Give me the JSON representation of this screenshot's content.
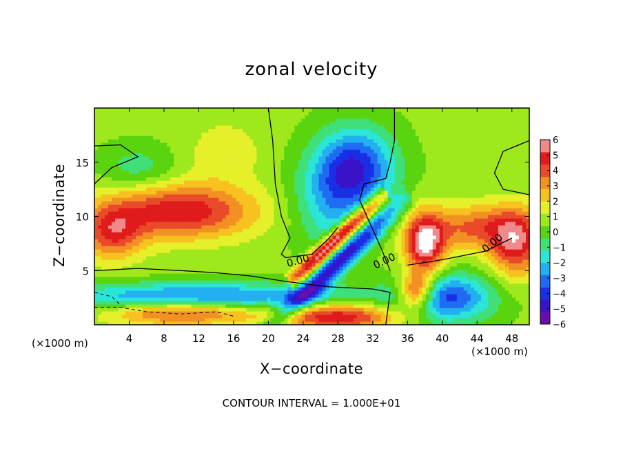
{
  "chart_data": {
    "type": "heatmap",
    "title": "zonal velocity",
    "xlabel": "X−coordinate",
    "ylabel": "Z−coordinate",
    "x_unit": "(×1000 m)",
    "y_unit": "(×1000 m)",
    "xlim": [
      0,
      50
    ],
    "ylim": [
      0,
      20
    ],
    "x_ticks": [
      "4",
      "8",
      "12",
      "16",
      "20",
      "24",
      "28",
      "32",
      "36",
      "40",
      "44",
      "48"
    ],
    "y_ticks": [
      "5",
      "10",
      "15"
    ],
    "colorbar": {
      "ticks": [
        "6",
        "5",
        "4",
        "3",
        "2",
        "1",
        "0",
        "−1",
        "−2",
        "−3",
        "−4",
        "−5",
        "−6"
      ],
      "range": [
        -6,
        6
      ],
      "colors": [
        "#6a0dad",
        "#3a12c8",
        "#1a2ee6",
        "#1f6cf2",
        "#22b0f0",
        "#2be6d8",
        "#3fe07a",
        "#5ad40f",
        "#9ee81c",
        "#e6f02a",
        "#f7c21f",
        "#f39023",
        "#e94a2a",
        "#e01b1b",
        "#f08a8a"
      ]
    },
    "field_features": [
      {
        "kind": "jet",
        "sign": "negative",
        "x": 30,
        "z": 14.5,
        "amplitude": -4.8
      },
      {
        "kind": "jet",
        "sign": "positive",
        "x": 10,
        "z": 10.5,
        "amplitude": 4.5
      },
      {
        "kind": "band",
        "sign": "positive",
        "x": 29,
        "z": 7,
        "amplitude": 6
      }
    ],
    "contour_labels": [
      "0.00",
      "0.00",
      "0.00"
    ],
    "contour_interval_text": "CONTOUR INTERVAL = 1.000E+01"
  }
}
